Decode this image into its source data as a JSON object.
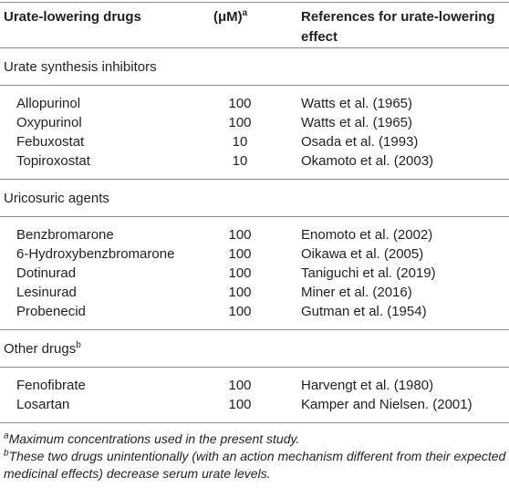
{
  "table": {
    "header": {
      "drug": "Urate-lowering drugs",
      "concentration": "(μM)",
      "concentration_note": "a",
      "reference": "References for urate-lowering effect"
    },
    "sections": [
      {
        "name": "Urate synthesis inhibitors",
        "rows": [
          [
            "Allopurinol",
            100,
            "Watts et al. (1965)"
          ],
          [
            "Oxypurinol",
            100,
            "Watts et al. (1965)"
          ],
          [
            "Febuxostat",
            10,
            "Osada et al. (1993)"
          ],
          [
            "Topiroxostat",
            10,
            "Okamoto et al. (2003)"
          ]
        ]
      },
      {
        "name": "Uricosuric agents",
        "rows": [
          [
            "Benzbromarone",
            100,
            "Enomoto et al. (2002)"
          ],
          [
            "6-Hydroxybenzbromarone",
            100,
            "Oikawa et al. (2005)"
          ],
          [
            "Dotinurad",
            100,
            "Taniguchi et al. (2019)"
          ],
          [
            "Lesinurad",
            100,
            "Miner et al. (2016)"
          ],
          [
            "Probenecid",
            100,
            "Gutman et al. (1954)"
          ]
        ]
      },
      {
        "name": "Other drugs",
        "note": "b",
        "rows": [
          [
            "Fenofibrate",
            100,
            "Harvengt et al. (1980)"
          ],
          [
            "Losartan",
            100,
            "Kamper and Nielsen. (2001)"
          ]
        ]
      }
    ],
    "footnotes": [
      {
        "marker": "a",
        "text": "Maximum concentrations used in the present study."
      },
      {
        "marker": "b",
        "text": "These two drugs unintentionally (with an action mechanism different from their expected medicinal effects) decrease serum urate levels."
      }
    ]
  }
}
